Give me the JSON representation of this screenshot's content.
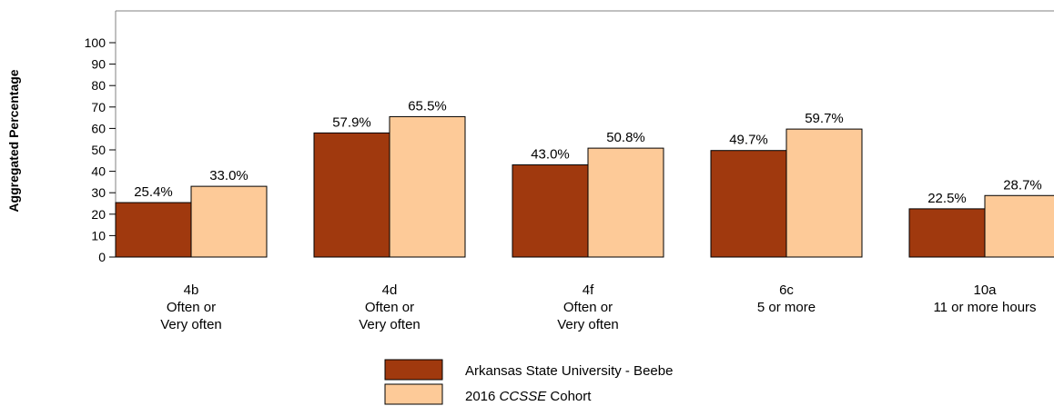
{
  "chart_data": {
    "type": "bar",
    "title": "",
    "xlabel": "",
    "ylabel": "Aggregated Percentage",
    "ylim": [
      0,
      100
    ],
    "yticks": [
      0,
      10,
      20,
      30,
      40,
      50,
      60,
      70,
      80,
      90,
      100
    ],
    "categories": [
      {
        "code": "4b",
        "lines": [
          "Often or",
          "Very often"
        ]
      },
      {
        "code": "4d",
        "lines": [
          "Often or",
          "Very often"
        ]
      },
      {
        "code": "4f",
        "lines": [
          "Often or",
          "Very often"
        ]
      },
      {
        "code": "6c",
        "lines": [
          "5 or more"
        ]
      },
      {
        "code": "10a",
        "lines": [
          "11 or more hours"
        ]
      }
    ],
    "series": [
      {
        "name": "Arkansas State University - Beebe",
        "color": "#a0390e",
        "values": [
          25.4,
          57.9,
          43.0,
          49.7,
          22.5
        ],
        "labels": [
          "25.4%",
          "57.9%",
          "43.0%",
          "49.7%",
          "22.5%"
        ]
      },
      {
        "name": "2016 CCSSE Cohort",
        "name_parts": [
          "2016 ",
          "CCSSE",
          " Cohort"
        ],
        "color": "#fdca98",
        "values": [
          33.0,
          65.5,
          50.8,
          59.7,
          28.7
        ],
        "labels": [
          "33.0%",
          "65.5%",
          "50.8%",
          "59.7%",
          "28.7%"
        ]
      }
    ],
    "grid": false,
    "legend_position": "bottom-center"
  }
}
